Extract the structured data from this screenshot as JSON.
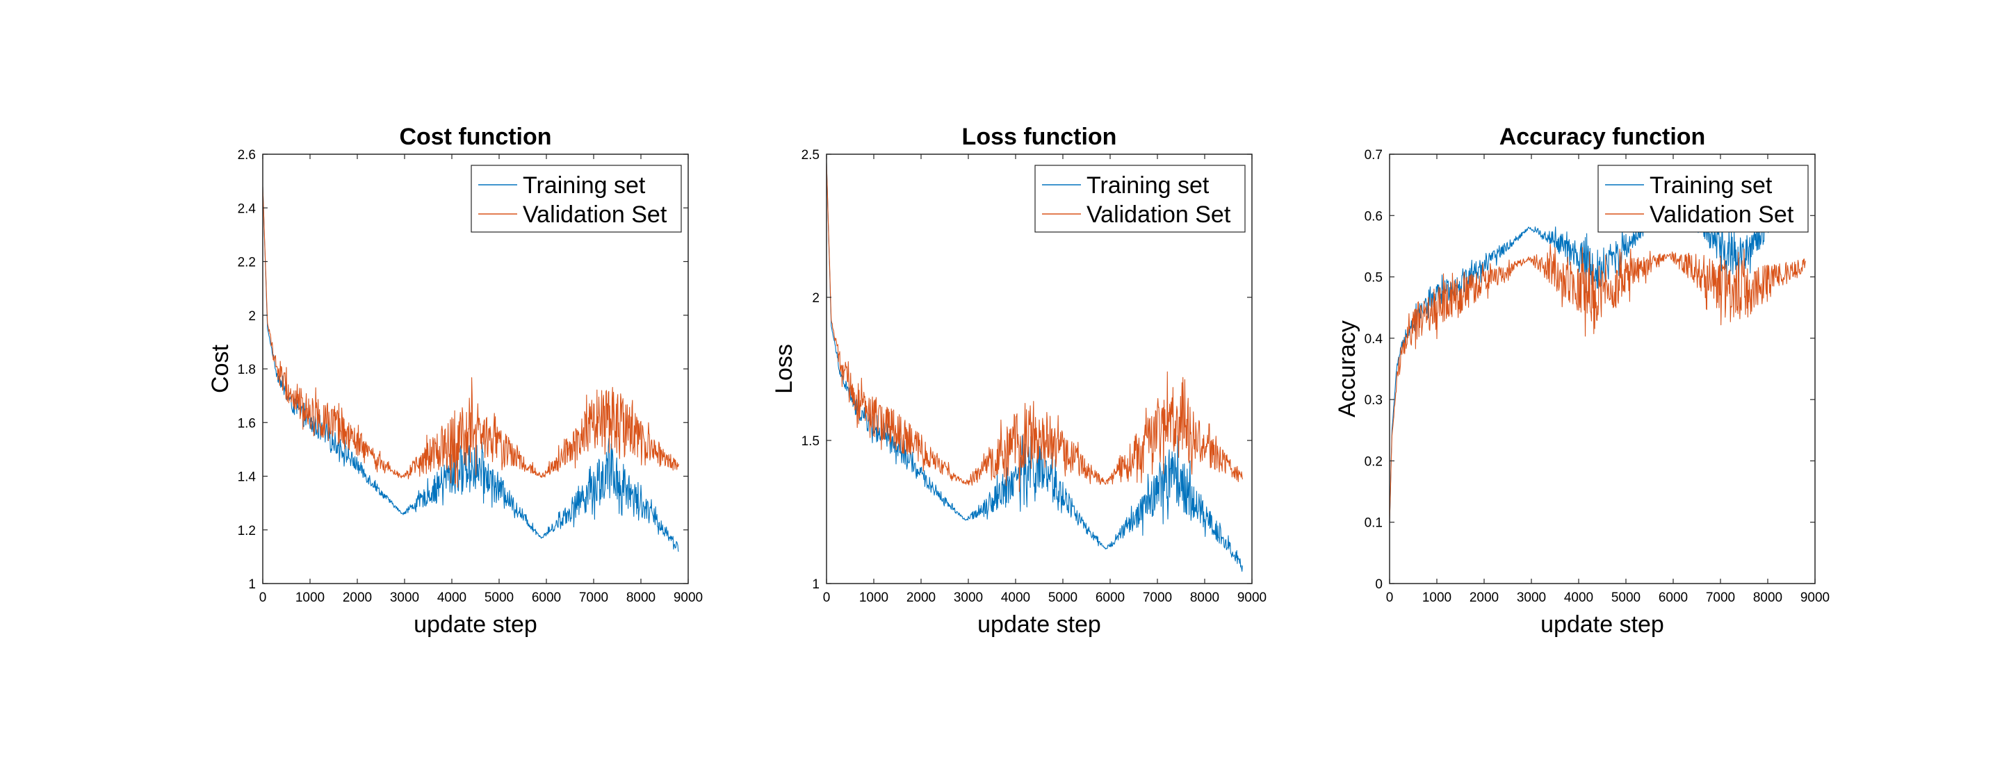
{
  "colors": {
    "training": "#0072bd",
    "validation": "#d95319",
    "axes": "#262626"
  },
  "chart_data": [
    {
      "type": "line",
      "title": "Cost function",
      "xlabel": "update step",
      "ylabel": "Cost",
      "xlim": [
        0,
        9000
      ],
      "ylim": [
        1,
        2.6
      ],
      "xticks": [
        "0",
        "1000",
        "2000",
        "3000",
        "4000",
        "5000",
        "6000",
        "7000",
        "8000",
        "9000"
      ],
      "yticks": [
        "1",
        "1.2",
        "1.4",
        "1.6",
        "1.8",
        "2",
        "2.2",
        "2.4",
        "2.6"
      ],
      "legend_position": "top-right",
      "grid": false,
      "series": [
        {
          "name": "Training set",
          "x": [
            0,
            100,
            300,
            600,
            1000,
            1500,
            2000,
            2500,
            2950,
            3500,
            4000,
            4400,
            5000,
            5500,
            5900,
            6500,
            7000,
            7350,
            8000,
            8500,
            8800
          ],
          "y": [
            2.48,
            1.95,
            1.78,
            1.67,
            1.6,
            1.53,
            1.44,
            1.34,
            1.26,
            1.33,
            1.41,
            1.45,
            1.36,
            1.25,
            1.17,
            1.27,
            1.37,
            1.42,
            1.3,
            1.2,
            1.13
          ],
          "noise": [
            0,
            0,
            0.02,
            0.03,
            0.04,
            0.04,
            0.03,
            0.015,
            0.003,
            0.04,
            0.08,
            0.1,
            0.05,
            0.02,
            0.003,
            0.04,
            0.09,
            0.11,
            0.05,
            0.025,
            0.015
          ]
        },
        {
          "name": "Validation Set",
          "x": [
            0,
            100,
            300,
            600,
            1000,
            1500,
            2000,
            2500,
            2950,
            3500,
            4000,
            4400,
            5000,
            5500,
            5900,
            6500,
            7000,
            7350,
            8000,
            8500,
            8800
          ],
          "y": [
            2.48,
            1.97,
            1.8,
            1.7,
            1.64,
            1.59,
            1.52,
            1.45,
            1.4,
            1.47,
            1.53,
            1.57,
            1.52,
            1.45,
            1.4,
            1.5,
            1.58,
            1.62,
            1.53,
            1.47,
            1.43
          ],
          "noise": [
            0,
            0,
            0.04,
            0.06,
            0.07,
            0.07,
            0.05,
            0.025,
            0.005,
            0.06,
            0.11,
            0.13,
            0.07,
            0.035,
            0.005,
            0.06,
            0.12,
            0.14,
            0.07,
            0.035,
            0.02
          ]
        }
      ]
    },
    {
      "type": "line",
      "title": "Loss function",
      "xlabel": "update step",
      "ylabel": "Loss",
      "xlim": [
        0,
        9000
      ],
      "ylim": [
        1,
        2.5
      ],
      "xticks": [
        "0",
        "1000",
        "2000",
        "3000",
        "4000",
        "5000",
        "6000",
        "7000",
        "8000",
        "9000"
      ],
      "yticks": [
        "1",
        "1.5",
        "2",
        "2.5"
      ],
      "legend_position": "top-right",
      "grid": false,
      "series": [
        {
          "name": "Training set",
          "x": [
            0,
            100,
            300,
            600,
            1000,
            1500,
            2000,
            2500,
            2950,
            3500,
            4000,
            4400,
            5000,
            5500,
            5900,
            6500,
            7000,
            7350,
            8000,
            8500,
            8800
          ],
          "y": [
            2.47,
            1.9,
            1.73,
            1.62,
            1.54,
            1.47,
            1.38,
            1.29,
            1.22,
            1.29,
            1.37,
            1.41,
            1.31,
            1.19,
            1.12,
            1.22,
            1.33,
            1.38,
            1.24,
            1.13,
            1.06
          ],
          "noise": [
            0,
            0,
            0.02,
            0.03,
            0.04,
            0.04,
            0.03,
            0.015,
            0.003,
            0.04,
            0.08,
            0.1,
            0.05,
            0.02,
            0.003,
            0.04,
            0.09,
            0.11,
            0.05,
            0.025,
            0.015
          ]
        },
        {
          "name": "Validation Set",
          "x": [
            0,
            100,
            300,
            600,
            1000,
            1500,
            2000,
            2500,
            2950,
            3500,
            4000,
            4400,
            5000,
            5500,
            5900,
            6500,
            7000,
            7350,
            8000,
            8500,
            8800
          ],
          "y": [
            2.47,
            1.92,
            1.76,
            1.65,
            1.58,
            1.53,
            1.47,
            1.4,
            1.35,
            1.42,
            1.49,
            1.53,
            1.47,
            1.4,
            1.35,
            1.45,
            1.53,
            1.57,
            1.48,
            1.41,
            1.37
          ],
          "noise": [
            0,
            0,
            0.04,
            0.06,
            0.07,
            0.07,
            0.05,
            0.025,
            0.005,
            0.06,
            0.11,
            0.13,
            0.07,
            0.035,
            0.005,
            0.06,
            0.12,
            0.14,
            0.07,
            0.035,
            0.02
          ]
        }
      ]
    },
    {
      "type": "line",
      "title": "Accuracy function",
      "xlabel": "update step",
      "ylabel": "Accuracy",
      "xlim": [
        0,
        9000
      ],
      "ylim": [
        0,
        0.7
      ],
      "xticks": [
        "0",
        "1000",
        "2000",
        "3000",
        "4000",
        "5000",
        "6000",
        "7000",
        "8000",
        "9000"
      ],
      "yticks": [
        "0",
        "0.1",
        "0.2",
        "0.3",
        "0.4",
        "0.5",
        "0.6",
        "0.7"
      ],
      "legend_position": "top-right",
      "grid": false,
      "series": [
        {
          "name": "Training set",
          "x": [
            0,
            50,
            150,
            300,
            600,
            1000,
            1500,
            2000,
            2500,
            2950,
            3500,
            4000,
            4400,
            5000,
            5500,
            5900,
            6500,
            7000,
            7350,
            8000,
            8500,
            8800
          ],
          "y": [
            0.1,
            0.25,
            0.35,
            0.4,
            0.44,
            0.47,
            0.49,
            0.52,
            0.55,
            0.58,
            0.56,
            0.53,
            0.51,
            0.55,
            0.59,
            0.62,
            0.59,
            0.55,
            0.53,
            0.58,
            0.62,
            0.64
          ],
          "noise": [
            0,
            0,
            0.005,
            0.01,
            0.015,
            0.02,
            0.02,
            0.015,
            0.008,
            0.002,
            0.015,
            0.03,
            0.035,
            0.02,
            0.008,
            0.002,
            0.015,
            0.03,
            0.035,
            0.02,
            0.01,
            0.008
          ]
        },
        {
          "name": "Validation Set",
          "x": [
            0,
            50,
            150,
            300,
            600,
            1000,
            1500,
            2000,
            2500,
            2950,
            3500,
            4000,
            4400,
            5000,
            5500,
            5900,
            6500,
            7000,
            7350,
            8000,
            8500,
            8800
          ],
          "y": [
            0.1,
            0.24,
            0.33,
            0.39,
            0.43,
            0.45,
            0.47,
            0.49,
            0.51,
            0.53,
            0.51,
            0.48,
            0.47,
            0.5,
            0.52,
            0.535,
            0.51,
            0.48,
            0.47,
            0.49,
            0.51,
            0.52
          ],
          "noise": [
            0,
            0,
            0.01,
            0.02,
            0.03,
            0.035,
            0.03,
            0.02,
            0.012,
            0.003,
            0.03,
            0.045,
            0.05,
            0.03,
            0.015,
            0.003,
            0.03,
            0.045,
            0.05,
            0.03,
            0.015,
            0.01
          ]
        }
      ]
    }
  ]
}
